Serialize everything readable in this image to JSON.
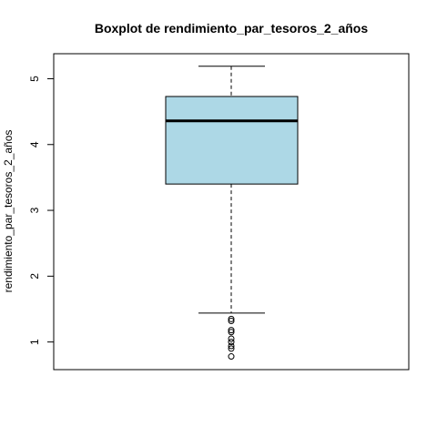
{
  "chart_data": {
    "type": "boxplot",
    "title": "Boxplot de rendimiento_par_tesoros_2_años",
    "xlabel": "",
    "ylabel": "rendimiento_par_tesoros_2_años",
    "ylim": [
      0.58,
      5.38
    ],
    "yticks": [
      1,
      2,
      3,
      4,
      5
    ],
    "ytick_labels": [
      "1",
      "2",
      "3",
      "4",
      "5"
    ],
    "box_color": "#add8e6",
    "grid": false,
    "legend": "none",
    "stats": {
      "whisker_low": 1.44,
      "q1": 3.4,
      "median": 4.36,
      "q3": 4.73,
      "whisker_high": 5.19
    },
    "outliers": [
      1.35,
      1.32,
      1.18,
      1.15,
      1.05,
      1.0,
      0.94,
      0.9,
      0.78
    ]
  }
}
